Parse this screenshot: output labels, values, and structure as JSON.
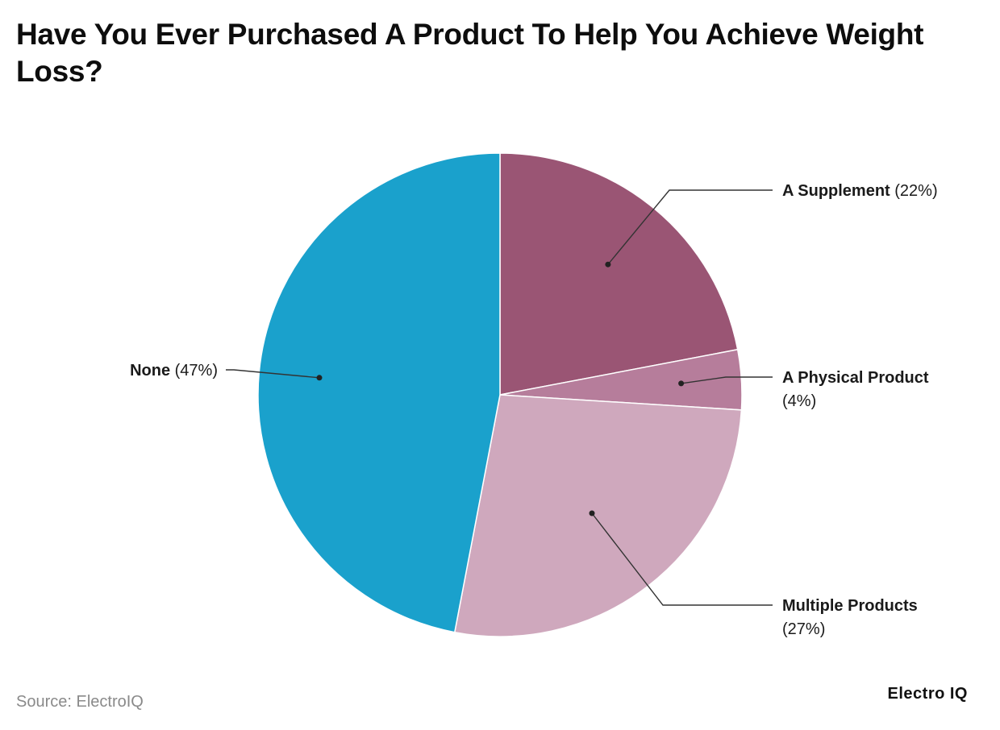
{
  "title": "Have You Ever Purchased A Product To Help You Achieve Weight Loss?",
  "footer": {
    "source": "Source: ElectroIQ",
    "brand": "Electro IQ"
  },
  "chart_data": {
    "type": "pie",
    "title": "Have You Ever Purchased A Product To Help You Achieve Weight Loss?",
    "start": "12 o'clock",
    "direction": "clockwise",
    "legend": "none",
    "slices": [
      {
        "label": "A Supplement",
        "value": 22,
        "display": "(22%)",
        "color": "#9a5574"
      },
      {
        "label": "A Physical Product",
        "value": 4,
        "display": "(4%)",
        "color": "#b67d9b"
      },
      {
        "label": "Multiple Products",
        "value": 27,
        "display": "(27%)",
        "color": "#cfa8bd"
      },
      {
        "label": "None",
        "value": 47,
        "display": "(47%)",
        "color": "#1aa1cc"
      }
    ]
  }
}
